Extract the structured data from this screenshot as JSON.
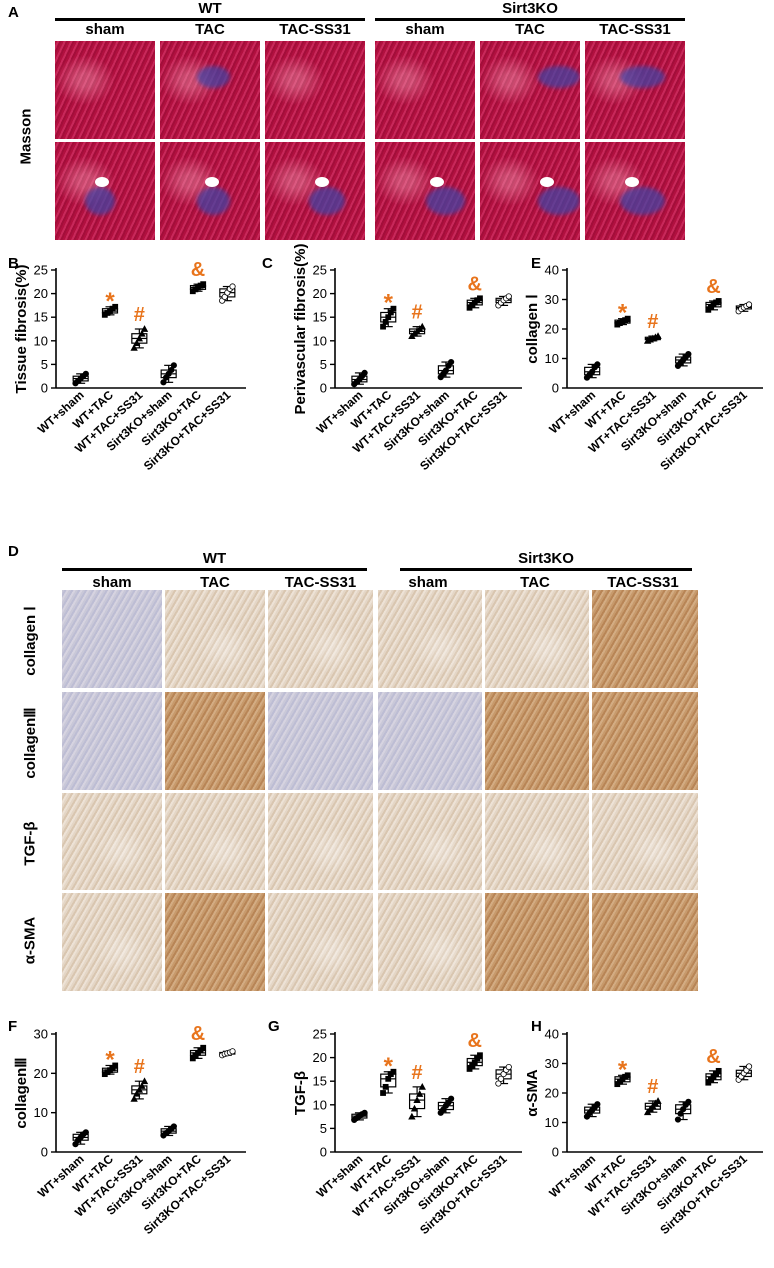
{
  "panels": {
    "A": "A",
    "B": "B",
    "C": "C",
    "D": "D",
    "E": "E",
    "F": "F",
    "G": "G",
    "H": "H"
  },
  "groups": {
    "wt": "WT",
    "ko": "Sirt3KO"
  },
  "columns": [
    "sham",
    "TAC",
    "TAC-SS31",
    "sham",
    "TAC",
    "TAC-SS31"
  ],
  "masson_label": "Masson",
  "ihc_rows": [
    "collagen Ⅰ",
    "collagenⅢ",
    "TGF-β",
    "α-SMA"
  ],
  "colors": {
    "annotation": "#e8741c",
    "masson": "#b1103f",
    "ihc": "#d9c6b0"
  },
  "icons": [
    "circle-marker",
    "square-marker",
    "triangle-marker",
    "inverted-triangle-marker",
    "diamond-marker",
    "hexagon-marker"
  ],
  "chart_data": [
    {
      "panel": "B",
      "type": "box",
      "ylabel": "Tissue fibrosis(%)",
      "ylim": [
        0,
        25
      ],
      "yticks": [
        0,
        5,
        10,
        15,
        20,
        25
      ],
      "categories": [
        "WT+sham",
        "WT+TAC",
        "WT+TAC+SS31",
        "Sirt3KO+sham",
        "Sirt3KO+TAC",
        "Sirt3KO+TAC+SS31"
      ],
      "boxes": [
        [
          1,
          1.5,
          2,
          2.5,
          3
        ],
        [
          15.5,
          15.9,
          16.3,
          16.8,
          17.2
        ],
        [
          8.5,
          9.5,
          10.5,
          11.5,
          12.5
        ],
        [
          1.2,
          2.2,
          3,
          3.8,
          4.8
        ],
        [
          20.5,
          20.9,
          21.3,
          21.7,
          22
        ],
        [
          18.5,
          19.3,
          20.2,
          21,
          21.5
        ]
      ],
      "annotations": [
        "",
        "*",
        "#",
        "",
        "&",
        ""
      ]
    },
    {
      "panel": "C",
      "type": "box",
      "ylabel": "Perivascular fibrosis(%)",
      "ylim": [
        0,
        25
      ],
      "yticks": [
        0,
        5,
        10,
        15,
        20,
        25
      ],
      "categories": [
        "WT+sham",
        "WT+TAC",
        "WT+TAC+SS31",
        "Sirt3KO+sham",
        "Sirt3KO+TAC",
        "Sirt3KO+TAC+SS31"
      ],
      "boxes": [
        [
          0.8,
          1.3,
          1.8,
          2.5,
          3.2
        ],
        [
          13,
          14,
          15,
          16,
          16.8
        ],
        [
          11,
          11.5,
          12,
          12.5,
          13
        ],
        [
          2.3,
          3,
          3.7,
          4.7,
          5.5
        ],
        [
          17,
          17.6,
          18.1,
          18.6,
          19
        ],
        [
          17.5,
          18.1,
          18.6,
          19,
          19.4
        ]
      ],
      "annotations": [
        "",
        "*",
        "#",
        "",
        "&",
        ""
      ]
    },
    {
      "panel": "E",
      "type": "box",
      "ylabel": "collagen Ⅰ",
      "ylim": [
        0,
        40
      ],
      "yticks": [
        0,
        10,
        20,
        30,
        40
      ],
      "categories": [
        "WT+sham",
        "WT+TAC",
        "WT+TAC+SS31",
        "Sirt3KO+sham",
        "Sirt3KO+TAC",
        "Sirt3KO+TAC+SS31"
      ],
      "boxes": [
        [
          3.5,
          4.5,
          5.5,
          7,
          8
        ],
        [
          21.5,
          22,
          22.5,
          23,
          23.5
        ],
        [
          16,
          16.4,
          16.8,
          17.2,
          17.6
        ],
        [
          7.5,
          8.5,
          9.5,
          10.5,
          11.5
        ],
        [
          26.5,
          27.5,
          28.3,
          29,
          29.5
        ],
        [
          26,
          26.8,
          27.3,
          27.8,
          28.3
        ]
      ],
      "annotations": [
        "",
        "*",
        "#",
        "",
        "&",
        ""
      ]
    },
    {
      "panel": "F",
      "type": "box",
      "ylabel": "collagenⅢ",
      "ylim": [
        0,
        30
      ],
      "yticks": [
        0,
        10,
        20,
        30
      ],
      "categories": [
        "WT+sham",
        "WT+TAC",
        "WT+TAC+SS31",
        "Sirt3KO+sham",
        "Sirt3KO+TAC",
        "Sirt3KO+TAC+SS31"
      ],
      "boxes": [
        [
          2,
          3,
          3.7,
          4.5,
          5
        ],
        [
          19.8,
          20.3,
          20.8,
          21.3,
          22
        ],
        [
          13.5,
          14.8,
          15.8,
          16.8,
          18
        ],
        [
          4.2,
          4.8,
          5.3,
          5.9,
          6.5
        ],
        [
          23.8,
          24.6,
          25.2,
          25.8,
          26.5
        ],
        [
          24.6,
          24.9,
          25.1,
          25.3,
          25.6
        ]
      ],
      "annotations": [
        "",
        "*",
        "#",
        "",
        "&",
        ""
      ]
    },
    {
      "panel": "G",
      "type": "box",
      "ylabel": "TGF-β",
      "ylim": [
        0,
        25
      ],
      "yticks": [
        0,
        5,
        10,
        15,
        20,
        25
      ],
      "categories": [
        "WT+sham",
        "WT+TAC",
        "WT+TAC+SS31",
        "Sirt3KO+sham",
        "Sirt3KO+TAC",
        "Sirt3KO+TAC+SS31"
      ],
      "boxes": [
        [
          6.8,
          7.2,
          7.6,
          8,
          8.3
        ],
        [
          12.5,
          13.8,
          15.5,
          16.5,
          17
        ],
        [
          7.5,
          9.2,
          11,
          12.3,
          13.8
        ],
        [
          8.3,
          9,
          9.8,
          10.5,
          11.3
        ],
        [
          17.6,
          18.3,
          19,
          19.8,
          20.5
        ],
        [
          14.5,
          15.5,
          16.5,
          17.4,
          18
        ]
      ],
      "annotations": [
        "",
        "*",
        "#",
        "",
        "&",
        ""
      ]
    },
    {
      "panel": "H",
      "type": "box",
      "ylabel": "α-SMA",
      "ylim": [
        0,
        40
      ],
      "yticks": [
        0,
        10,
        20,
        30,
        40
      ],
      "categories": [
        "WT+sham",
        "WT+TAC",
        "WT+TAC+SS31",
        "Sirt3KO+sham",
        "Sirt3KO+TAC",
        "Sirt3KO+TAC+SS31"
      ],
      "boxes": [
        [
          12,
          13.2,
          14.2,
          15.2,
          16.2
        ],
        [
          23,
          23.8,
          24.7,
          25.5,
          26
        ],
        [
          13.5,
          14.5,
          15.5,
          16.5,
          17.3
        ],
        [
          11,
          13,
          14.5,
          16,
          17
        ],
        [
          23.5,
          24.5,
          25.5,
          26.5,
          27.5
        ],
        [
          24.5,
          25.6,
          26.7,
          27.7,
          29
        ]
      ],
      "annotations": [
        "",
        "*",
        "#",
        "",
        "&",
        ""
      ]
    }
  ]
}
